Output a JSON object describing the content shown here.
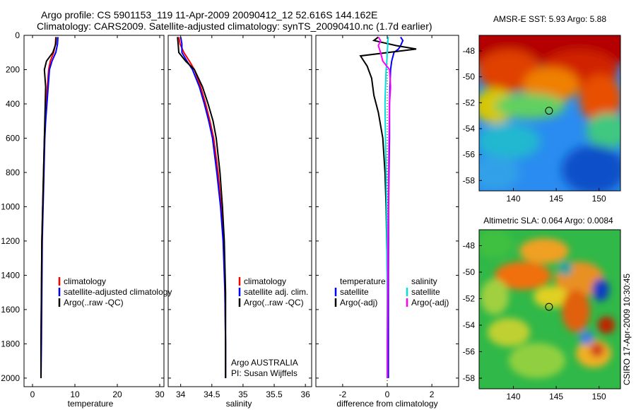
{
  "header": {
    "line1": "Argo profile: CS 5901153_119 11-Apr-2009 20090412_12 52.616S 144.162E",
    "line2": "Climatology: CARS2009. Satellite-adjusted climatology: synTS_20090410.nc (1.7d earlier)"
  },
  "side_label": "CSIRO 17-Apr-2009 10:30:45",
  "colors": {
    "climatology": "#ff0000",
    "satellite": "#0000ff",
    "argo": "#000000",
    "sat_diff": "#00e0e0",
    "argo_sal_diff": "#ff00ff"
  },
  "chart_data": [
    {
      "type": "line",
      "panel": "temperature",
      "xlabel": "temperature",
      "xlim": [
        -2,
        31
      ],
      "ylim": [
        2050,
        0
      ],
      "xticks": [
        0,
        10,
        20,
        30
      ],
      "yticks": [
        0,
        200,
        400,
        600,
        800,
        1000,
        1200,
        1400,
        1600,
        1800,
        2000
      ],
      "legend": [
        "climatology",
        "satellite-adjusted climatology",
        "Argo(..raw -QC)"
      ],
      "series": [
        {
          "name": "climatology",
          "color": "#ff0000",
          "x": [
            5.5,
            5.4,
            5.0,
            4.2,
            3.8,
            3.5,
            3.2,
            3.0,
            2.8,
            2.6,
            2.4,
            2.2,
            2.1,
            2.0,
            2.0
          ],
          "y": [
            10,
            50,
            100,
            150,
            200,
            300,
            400,
            500,
            600,
            800,
            1000,
            1200,
            1500,
            1800,
            2000
          ]
        },
        {
          "name": "satellite-adjusted climatology",
          "color": "#0000ff",
          "x": [
            6.0,
            5.9,
            5.5,
            4.6,
            4.0,
            3.7,
            3.4,
            3.1,
            2.9,
            2.7,
            2.5,
            2.3,
            2.2,
            2.1,
            2.0
          ],
          "y": [
            10,
            50,
            100,
            150,
            200,
            300,
            400,
            500,
            600,
            800,
            1000,
            1200,
            1500,
            1800,
            2000
          ]
        },
        {
          "name": "Argo(..raw -QC)",
          "color": "#000000",
          "x": [
            5.6,
            5.5,
            4.8,
            3.3,
            2.8,
            3.1,
            3.0,
            2.9,
            2.8,
            2.6,
            2.4,
            2.2,
            2.1,
            2.0,
            2.0
          ],
          "y": [
            10,
            50,
            100,
            150,
            200,
            300,
            400,
            500,
            600,
            800,
            1000,
            1200,
            1500,
            1800,
            2000
          ]
        }
      ]
    },
    {
      "type": "line",
      "panel": "salinity",
      "xlabel": "salinity",
      "xlim": [
        33.8,
        36.1
      ],
      "ylim": [
        2050,
        0
      ],
      "xticks": [
        34,
        34.5,
        35,
        35.5,
        36
      ],
      "yticks": [
        0,
        200,
        400,
        600,
        800,
        1000,
        1200,
        1400,
        1600,
        1800,
        2000
      ],
      "legend": [
        "climatology",
        "satellite adj. clim.",
        "Argo(..raw -QC)"
      ],
      "annotations": [
        "Argo AUSTRALIA",
        "PI: Susan Wijffels"
      ],
      "series": [
        {
          "name": "climatology",
          "color": "#ff0000",
          "x": [
            33.97,
            33.99,
            34.05,
            34.14,
            34.22,
            34.32,
            34.4,
            34.47,
            34.53,
            34.6,
            34.65,
            34.69,
            34.71,
            34.72,
            34.72
          ],
          "y": [
            10,
            50,
            100,
            150,
            200,
            300,
            400,
            500,
            600,
            800,
            1000,
            1200,
            1500,
            1800,
            2000
          ]
        },
        {
          "name": "satellite adj. clim.",
          "color": "#0000ff",
          "x": [
            34.0,
            34.02,
            34.02,
            34.1,
            34.19,
            34.3,
            34.38,
            34.45,
            34.51,
            34.58,
            34.64,
            34.68,
            34.71,
            34.72,
            34.72
          ],
          "y": [
            10,
            50,
            100,
            150,
            200,
            300,
            400,
            500,
            600,
            800,
            1000,
            1200,
            1500,
            1800,
            2000
          ]
        },
        {
          "name": "Argo(..raw -QC)",
          "color": "#000000",
          "x": [
            33.95,
            33.96,
            33.97,
            34.08,
            34.22,
            34.35,
            34.44,
            34.52,
            34.57,
            34.63,
            34.67,
            34.7,
            34.72,
            34.72,
            34.72
          ],
          "y": [
            10,
            50,
            100,
            150,
            200,
            300,
            400,
            500,
            600,
            800,
            1000,
            1200,
            1500,
            1800,
            2000
          ]
        }
      ]
    },
    {
      "type": "line",
      "panel": "difference",
      "xlabel": "difference from climatology",
      "xlim": [
        -3.2,
        3.2
      ],
      "ylim": [
        2050,
        0
      ],
      "xticks": [
        -2,
        0,
        2
      ],
      "yticks": [
        0,
        200,
        400,
        600,
        800,
        1000,
        1200,
        1400,
        1600,
        1800,
        2000
      ],
      "legend_headers": [
        "temperature",
        "salinity"
      ],
      "legend": [
        "satellite",
        "Argo(-adj)",
        "satellite",
        "Argo(-adj)"
      ],
      "series": [
        {
          "name": "satellite",
          "group": "temperature",
          "color": "#0000ff",
          "x": [
            0.6,
            0.7,
            0.6,
            0.5,
            0.3,
            0.2,
            0.15,
            0.12,
            0.1,
            0.1,
            0.08,
            0.06,
            0.05,
            0.05,
            0.05
          ],
          "y": [
            10,
            30,
            60,
            80,
            100,
            150,
            200,
            300,
            400,
            600,
            800,
            1000,
            1400,
            1800,
            2000
          ]
        },
        {
          "name": "Argo(-adj)",
          "group": "temperature",
          "color": "#000000",
          "x": [
            -0.4,
            -0.6,
            0.4,
            1.3,
            -1.2,
            -0.9,
            -0.7,
            -0.6,
            -0.4,
            -0.2,
            -0.1,
            -0.05,
            0.0,
            0.0,
            0.0
          ],
          "y": [
            10,
            30,
            60,
            80,
            120,
            180,
            250,
            350,
            450,
            600,
            800,
            1000,
            1400,
            1800,
            2000
          ]
        },
        {
          "name": "satellite",
          "group": "salinity",
          "color": "#00e0e0",
          "x": [
            0.05,
            0.03,
            0.02,
            0.0,
            -0.02,
            -0.05,
            -0.08,
            -0.1,
            -0.08,
            -0.05,
            -0.03,
            -0.02,
            0.0,
            0.0,
            0.0
          ],
          "y": [
            10,
            30,
            60,
            100,
            150,
            200,
            300,
            400,
            600,
            800,
            1000,
            1200,
            1500,
            1800,
            2000
          ]
        },
        {
          "name": "Argo(-adj)",
          "group": "salinity",
          "color": "#ff00ff",
          "x": [
            -0.4,
            -0.3,
            -0.4,
            -0.3,
            -0.2,
            0.1,
            0.15,
            0.1,
            0.08,
            0.06,
            0.05,
            0.03,
            0.02,
            0.0,
            0.0
          ],
          "y": [
            10,
            30,
            60,
            100,
            150,
            200,
            300,
            400,
            600,
            800,
            1000,
            1200,
            1500,
            1800,
            2000
          ]
        }
      ]
    },
    {
      "type": "heatmap",
      "panel": "sst_map",
      "title": "AMSR-E SST: 5.93 Argo: 5.88",
      "xlim": [
        136,
        152.5
      ],
      "ylim": [
        -58.8,
        -46.8
      ],
      "xticks": [
        140,
        145,
        150
      ],
      "yticks": [
        -48,
        -50,
        -52,
        -54,
        -56,
        -58
      ],
      "marker": {
        "lon": 144.162,
        "lat": -52.616
      }
    },
    {
      "type": "heatmap",
      "panel": "sla_map",
      "title": "Altimetric SLA: 0.064 Argo: 0.0084",
      "xlim": [
        136,
        152.5
      ],
      "ylim": [
        -58.8,
        -46.8
      ],
      "xticks": [
        140,
        145,
        150
      ],
      "yticks": [
        -48,
        -50,
        -52,
        -54,
        -56,
        -58
      ],
      "marker": {
        "lon": 144.162,
        "lat": -52.616
      }
    }
  ]
}
